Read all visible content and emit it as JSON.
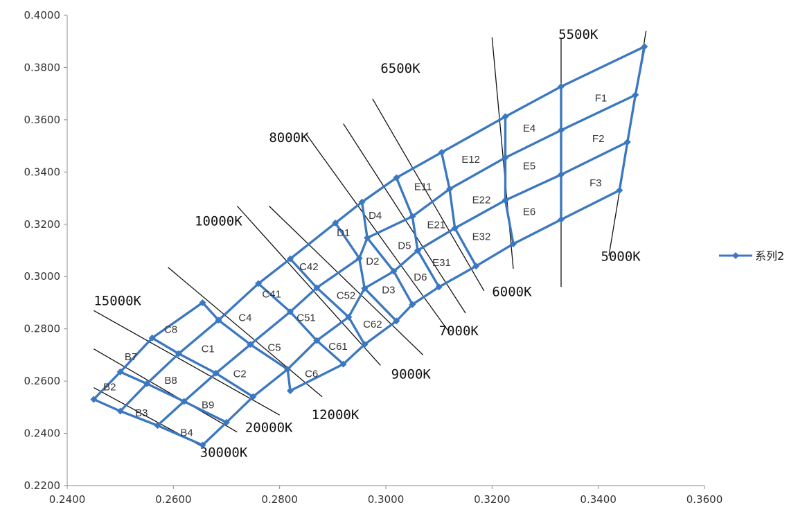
{
  "chart_data": {
    "type": "line",
    "xlim": [
      0.24,
      0.36
    ],
    "ylim": [
      0.22,
      0.4
    ],
    "x_ticks": [
      "0.2400",
      "0.2600",
      "0.2800",
      "0.3000",
      "0.3200",
      "0.3400",
      "0.3600"
    ],
    "y_ticks": [
      "0.2200",
      "0.2400",
      "0.2600",
      "0.2800",
      "0.3000",
      "0.3200",
      "0.3400",
      "0.3600",
      "0.3800",
      "0.4000"
    ],
    "grid": false,
    "legend_position": "right",
    "series": [
      {
        "name": "系列2",
        "color": "#3c78c0",
        "rows": [
          [
            [
              0.245,
              0.253
            ],
            [
              0.25,
              0.2635
            ],
            [
              0.256,
              0.2765
            ],
            [
              0.2655,
              0.29
            ]
          ],
          [
            [
              0.25,
              0.2485
            ],
            [
              0.255,
              0.259
            ],
            [
              0.261,
              0.2705
            ],
            [
              0.2685,
              0.2833
            ],
            [
              0.276,
              0.2973
            ],
            [
              0.282,
              0.3068
            ],
            [
              0.2905,
              0.3205
            ],
            [
              0.2955,
              0.3285
            ],
            [
              0.302,
              0.3378
            ],
            [
              0.3105,
              0.3475
            ],
            [
              0.3225,
              0.3612
            ],
            [
              0.333,
              0.3727
            ],
            [
              0.3487,
              0.388
            ]
          ],
          [
            [
              0.257,
              0.243
            ],
            [
              0.262,
              0.2522
            ],
            [
              0.268,
              0.263
            ],
            [
              0.2745,
              0.274
            ],
            [
              0.282,
              0.2865
            ],
            [
              0.287,
              0.2957
            ],
            [
              0.295,
              0.307
            ],
            [
              0.2965,
              0.3148
            ],
            [
              0.305,
              0.323
            ],
            [
              0.312,
              0.3335
            ],
            [
              0.3225,
              0.3455
            ],
            [
              0.333,
              0.356
            ],
            [
              0.347,
              0.3695
            ]
          ],
          [
            [
              0.2655,
              0.2355
            ],
            [
              0.27,
              0.2442
            ],
            [
              0.275,
              0.254
            ],
            [
              0.2815,
              0.2645
            ],
            [
              0.287,
              0.2755
            ],
            [
              0.293,
              0.2845
            ],
            [
              0.296,
              0.2955
            ],
            [
              0.3015,
              0.302
            ],
            [
              0.306,
              0.31
            ],
            [
              0.313,
              0.3185
            ],
            [
              0.3225,
              0.3292
            ],
            [
              0.333,
              0.339
            ],
            [
              0.3455,
              0.3515
            ]
          ],
          [
            [
              0.282,
              0.2563
            ],
            [
              0.292,
              0.2665
            ],
            [
              0.296,
              0.274
            ],
            [
              0.302,
              0.283
            ],
            [
              0.305,
              0.2893
            ],
            [
              0.31,
              0.296
            ],
            [
              0.317,
              0.304
            ],
            [
              0.324,
              0.3125
            ],
            [
              0.333,
              0.3218
            ],
            [
              0.344,
              0.333
            ]
          ]
        ]
      }
    ],
    "cct_lines": [
      {
        "label": "30000K",
        "from": [
          0.245,
          0.2575
        ],
        "to": [
          0.266,
          0.2343
        ],
        "label_at": [
          0.265,
          0.231
        ]
      },
      {
        "label": "20000K",
        "from": [
          0.245,
          0.2723
        ],
        "to": [
          0.272,
          0.2405
        ],
        "label_at": [
          0.2735,
          0.2405
        ]
      },
      {
        "label": "15000K",
        "from": [
          0.245,
          0.287
        ],
        "to": [
          0.28,
          0.247
        ],
        "label_at": [
          0.245,
          0.289
        ]
      },
      {
        "label": "12000K",
        "from": [
          0.259,
          0.3035
        ],
        "to": [
          0.288,
          0.254
        ],
        "label_at": [
          0.286,
          0.2455
        ]
      },
      {
        "label": "10000K",
        "from": [
          0.272,
          0.327
        ],
        "to": [
          0.299,
          0.266
        ],
        "label_at": [
          0.264,
          0.3195
        ]
      },
      {
        "label": "9000K",
        "from": [
          0.278,
          0.327
        ],
        "to": [
          0.307,
          0.27
        ],
        "label_at": [
          0.301,
          0.261
        ]
      },
      {
        "label": "8000K",
        "from": [
          0.285,
          0.3545
        ],
        "to": [
          0.312,
          0.2785
        ],
        "label_at": [
          0.278,
          0.3515
        ]
      },
      {
        "label": "7000K",
        "from": [
          0.292,
          0.3585
        ],
        "to": [
          0.315,
          0.286
        ],
        "label_at": [
          0.31,
          0.2775
        ]
      },
      {
        "label": "6500K",
        "from": [
          0.2975,
          0.368
        ],
        "to": [
          0.3185,
          0.2945
        ],
        "label_at": [
          0.299,
          0.378
        ]
      },
      {
        "label": "6000K",
        "from": [
          0.32,
          0.3915
        ],
        "to": [
          0.324,
          0.303
        ],
        "label_at": [
          0.32,
          0.2925
        ]
      },
      {
        "label": "5500K",
        "from": [
          0.333,
          0.391
        ],
        "to": [
          0.333,
          0.296
        ],
        "label_at": [
          0.3325,
          0.391
        ]
      },
      {
        "label": "5000K",
        "from": [
          0.349,
          0.394
        ],
        "to": [
          0.342,
          0.308
        ],
        "label_at": [
          0.3405,
          0.306
        ]
      }
    ],
    "bins": [
      {
        "label": "B2",
        "at": [
          0.248,
          0.2565
        ]
      },
      {
        "label": "B3",
        "at": [
          0.254,
          0.2465
        ]
      },
      {
        "label": "B4",
        "at": [
          0.2625,
          0.239
        ]
      },
      {
        "label": "B7",
        "at": [
          0.252,
          0.268
        ]
      },
      {
        "label": "B8",
        "at": [
          0.2595,
          0.259
        ]
      },
      {
        "label": "B9",
        "at": [
          0.2665,
          0.2495
        ]
      },
      {
        "label": "C8",
        "at": [
          0.2595,
          0.2785
        ]
      },
      {
        "label": "C1",
        "at": [
          0.2665,
          0.271
        ]
      },
      {
        "label": "C2",
        "at": [
          0.2725,
          0.2615
        ]
      },
      {
        "label": "C4",
        "at": [
          0.2735,
          0.283
        ]
      },
      {
        "label": "C5",
        "at": [
          0.279,
          0.2715
        ]
      },
      {
        "label": "C6",
        "at": [
          0.286,
          0.2615
        ]
      },
      {
        "label": "C41",
        "at": [
          0.2785,
          0.292
        ]
      },
      {
        "label": "C42",
        "at": [
          0.2855,
          0.3025
        ]
      },
      {
        "label": "C51",
        "at": [
          0.285,
          0.283
        ]
      },
      {
        "label": "C52",
        "at": [
          0.2925,
          0.2915
        ]
      },
      {
        "label": "C61",
        "at": [
          0.291,
          0.272
        ]
      },
      {
        "label": "C62",
        "at": [
          0.2975,
          0.2805
        ]
      },
      {
        "label": "D1",
        "at": [
          0.292,
          0.3155
        ]
      },
      {
        "label": "D2",
        "at": [
          0.2975,
          0.3045
        ]
      },
      {
        "label": "D3",
        "at": [
          0.3005,
          0.2935
        ]
      },
      {
        "label": "D4",
        "at": [
          0.298,
          0.322
        ]
      },
      {
        "label": "D5",
        "at": [
          0.3035,
          0.3105
        ]
      },
      {
        "label": "D6",
        "at": [
          0.3065,
          0.2985
        ]
      },
      {
        "label": "E11",
        "at": [
          0.307,
          0.333
        ]
      },
      {
        "label": "E12",
        "at": [
          0.316,
          0.3435
        ]
      },
      {
        "label": "E21",
        "at": [
          0.3095,
          0.3185
        ]
      },
      {
        "label": "E22",
        "at": [
          0.318,
          0.328
        ]
      },
      {
        "label": "E31",
        "at": [
          0.3105,
          0.304
        ]
      },
      {
        "label": "E32",
        "at": [
          0.318,
          0.314
        ]
      },
      {
        "label": "E4",
        "at": [
          0.327,
          0.3555
        ]
      },
      {
        "label": "E5",
        "at": [
          0.327,
          0.341
        ]
      },
      {
        "label": "E6",
        "at": [
          0.327,
          0.3235
        ]
      },
      {
        "label": "F1",
        "at": [
          0.3405,
          0.367
        ]
      },
      {
        "label": "F2",
        "at": [
          0.34,
          0.3515
        ]
      },
      {
        "label": "F3",
        "at": [
          0.3395,
          0.3345
        ]
      }
    ]
  }
}
